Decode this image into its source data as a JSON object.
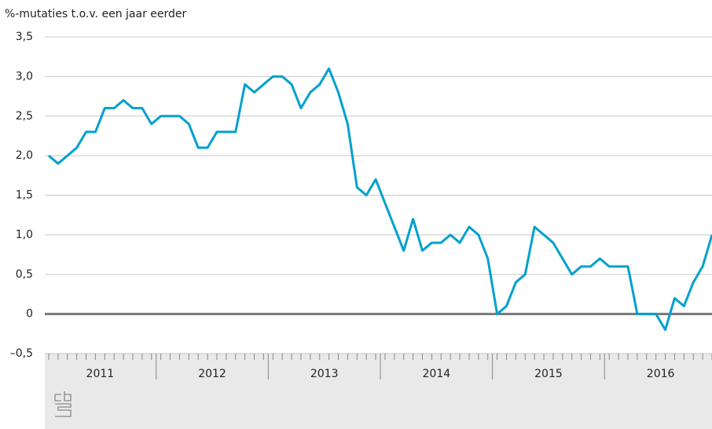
{
  "chart_data": {
    "type": "line",
    "title": "%-mutaties t.o.v. een jaar eerder",
    "categories": [
      null,
      null,
      null,
      null,
      null,
      null,
      null,
      null,
      null,
      null,
      null,
      null,
      null,
      null,
      null,
      null,
      null,
      null,
      null,
      null,
      null,
      null,
      null,
      null,
      null,
      null,
      null,
      null,
      null,
      null,
      null,
      null,
      null,
      null,
      null,
      null,
      null,
      null,
      null,
      null,
      null,
      null,
      null,
      null,
      null,
      null,
      null,
      null,
      null,
      null,
      null,
      null,
      null,
      null,
      null,
      null,
      null,
      null,
      null,
      null,
      null,
      null,
      null,
      null,
      null,
      null,
      null,
      null,
      null,
      null,
      null,
      null
    ],
    "year_labels": [
      "2011",
      "2012",
      "2013",
      "2014",
      "2015",
      "2016"
    ],
    "series": [
      {
        "name": null,
        "color": "#00a1cd",
        "values": [
          2.0,
          1.9,
          2.0,
          2.1,
          2.3,
          2.3,
          2.6,
          2.6,
          2.7,
          2.6,
          2.6,
          2.4,
          2.5,
          2.5,
          2.5,
          2.4,
          2.1,
          2.1,
          2.3,
          2.3,
          2.3,
          2.9,
          2.8,
          2.9,
          3.0,
          3.0,
          2.9,
          2.6,
          2.8,
          2.9,
          3.1,
          2.8,
          2.4,
          1.6,
          1.5,
          1.7,
          1.4,
          1.1,
          0.8,
          1.2,
          0.8,
          0.9,
          0.9,
          1.0,
          0.9,
          1.1,
          1.0,
          0.7,
          0.0,
          0.1,
          0.4,
          0.5,
          1.1,
          1.0,
          0.9,
          0.7,
          0.5,
          0.6,
          0.6,
          0.7,
          0.6,
          0.6,
          0.6,
          0.0,
          0.0,
          0.0,
          -0.2,
          0.2,
          0.1,
          0.4,
          0.6,
          1.0
        ]
      }
    ],
    "ylim": [
      -0.5,
      3.5
    ],
    "yticks": [
      {
        "value": -0.5,
        "label": "–0,5"
      },
      0,
      {
        "value": 0.5,
        "label": "0,5"
      },
      {
        "value": 1,
        "label": "1,0"
      },
      {
        "value": 1.5,
        "label": "1,5"
      },
      {
        "value": 2,
        "label": "2,0"
      },
      {
        "value": 2.5,
        "label": "2,5"
      },
      {
        "value": 3,
        "label": "3,0"
      },
      {
        "value": 3.5,
        "label": "3,5"
      }
    ],
    "grid": true
  }
}
